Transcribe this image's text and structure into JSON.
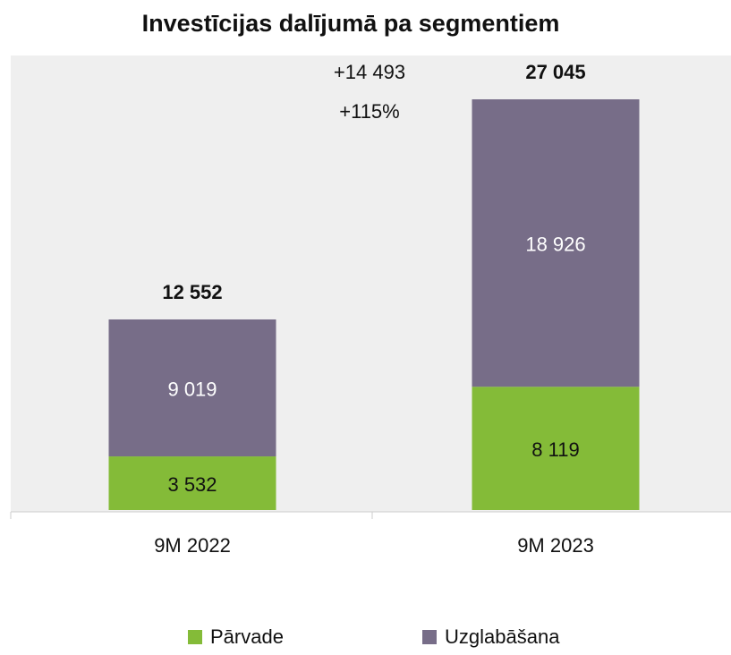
{
  "chart_data": {
    "type": "stacked_bar",
    "title": "Investīcijas dalījumā pa segmentiem",
    "categories": [
      "9M 2022",
      "9M 2023"
    ],
    "series": [
      {
        "name": "Pārvade",
        "color": "#84bb38",
        "values": [
          3532,
          8119
        ],
        "value_labels": [
          "3 532",
          "8 119"
        ]
      },
      {
        "name": "Uzglabāšana",
        "color": "#776d88",
        "values": [
          9019,
          18926
        ],
        "value_labels": [
          "9 019",
          "18 926"
        ]
      }
    ],
    "totals": [
      12552,
      27045
    ],
    "total_labels": [
      "12 552",
      "27 045"
    ],
    "annotations": [
      "+14 493",
      "+115%"
    ]
  }
}
